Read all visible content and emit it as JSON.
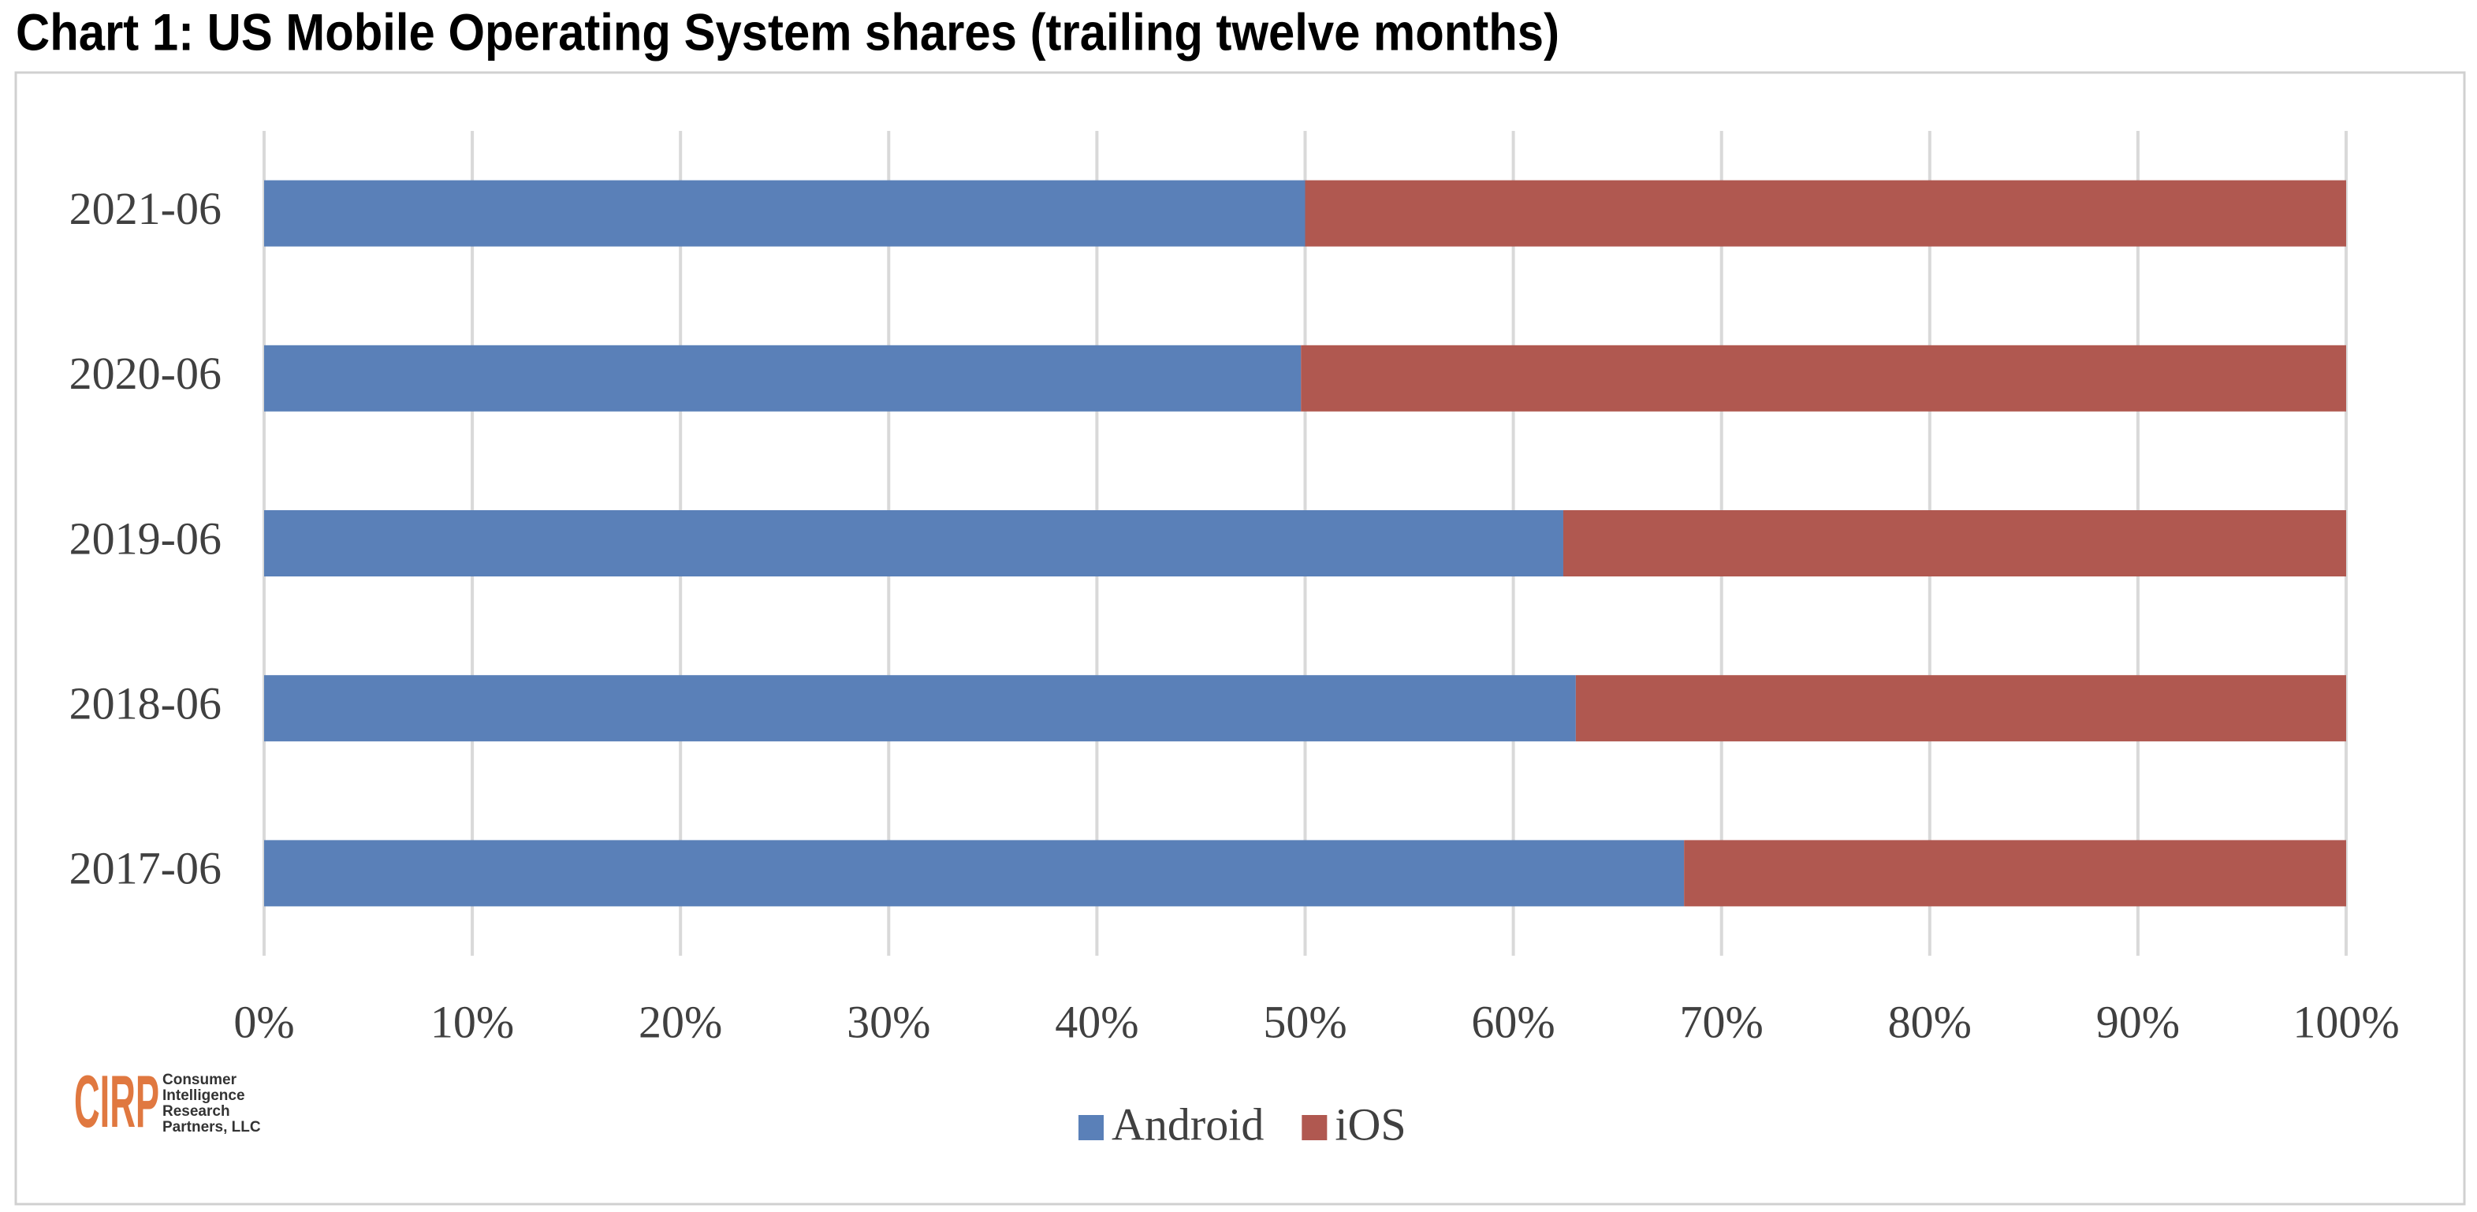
{
  "chart_data": {
    "type": "stacked_barh",
    "title": "Chart 1: US Mobile Operating System shares (trailing twelve months)",
    "categories": [
      "2021-06",
      "2020-06",
      "2019-06",
      "2018-06",
      "2017-06"
    ],
    "series": [
      {
        "name": "Android",
        "color": "#5a80b8",
        "values": [
          50,
          49.8,
          62.4,
          63.0,
          68.2
        ]
      },
      {
        "name": "iOS",
        "color": "#b05850",
        "values": [
          50,
          50.2,
          37.6,
          37.0,
          31.8
        ]
      }
    ],
    "xlim": [
      0,
      100
    ],
    "xticks": [
      {
        "value": 0,
        "label": "0%"
      },
      {
        "value": 10,
        "label": "10%"
      },
      {
        "value": 20,
        "label": "20%"
      },
      {
        "value": 30,
        "label": "30%"
      },
      {
        "value": 40,
        "label": "40%"
      },
      {
        "value": 50,
        "label": "50%"
      },
      {
        "value": 60,
        "label": "60%"
      },
      {
        "value": 70,
        "label": "70%"
      },
      {
        "value": 80,
        "label": "80%"
      },
      {
        "value": 90,
        "label": "90%"
      },
      {
        "value": 100,
        "label": "100%"
      }
    ],
    "grid": true,
    "legend": "bottom"
  },
  "logo": {
    "mark": "CIRP",
    "lines": [
      "Consumer",
      "Intelligence",
      "Research",
      "Partners, LLC"
    ]
  }
}
